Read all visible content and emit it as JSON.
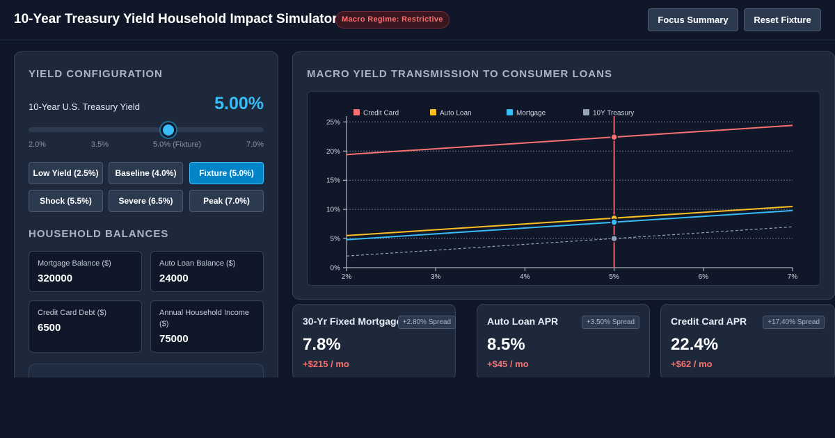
{
  "header": {
    "title": "10-Year Treasury Yield Household Impact Simulator",
    "regime_badge": "Macro Regime: Restrictive",
    "focus_button": "Focus Summary",
    "reset_button": "Reset Fixture"
  },
  "yield_config": {
    "section_title": "YIELD CONFIGURATION",
    "label": "10-Year U.S. Treasury Yield",
    "value_text": "5.00%",
    "slider": {
      "min": 2.0,
      "max": 7.0,
      "value": 5.0
    },
    "ticks": [
      "2.0%",
      "3.5%",
      "5.0% (Fixture)",
      "7.0%"
    ],
    "presets": [
      {
        "label": "Low Yield (2.5%)",
        "active": false
      },
      {
        "label": "Baseline (4.0%)",
        "active": false
      },
      {
        "label": "Fixture (5.0%)",
        "active": true
      },
      {
        "label": "Shock (5.5%)",
        "active": false
      },
      {
        "label": "Severe (6.5%)",
        "active": false
      },
      {
        "label": "Peak (7.0%)",
        "active": false
      }
    ]
  },
  "household": {
    "section_title": "HOUSEHOLD BALANCES",
    "fields": [
      {
        "label": "Mortgage Balance ($)",
        "value": "320000"
      },
      {
        "label": "Auto Loan Balance ($)",
        "value": "24000"
      },
      {
        "label": "Credit Card Debt ($)",
        "value": "6500"
      },
      {
        "label": "Annual Household Income ($)",
        "value": "75000"
      }
    ]
  },
  "chart_section": {
    "title": "MACRO YIELD TRANSMISSION TO CONSUMER LOANS"
  },
  "chart_data": {
    "type": "line",
    "x": [
      2,
      3,
      4,
      5,
      6,
      7
    ],
    "x_tick_labels": [
      "2%",
      "3%",
      "4%",
      "5%",
      "6%",
      "7%"
    ],
    "y_tick_labels": [
      "0%",
      "5%",
      "10%",
      "15%",
      "20%",
      "25%"
    ],
    "xlim": [
      2,
      7
    ],
    "ylim": [
      0,
      26
    ],
    "y_ticks": [
      0,
      5,
      10,
      15,
      20,
      25
    ],
    "grid": true,
    "legend_position": "top-left",
    "marker_x": 5,
    "series": [
      {
        "name": "Credit Card",
        "color": "#f87171",
        "dashed": false,
        "values": [
          19.4,
          20.4,
          21.4,
          22.4,
          23.4,
          24.4
        ]
      },
      {
        "name": "Auto Loan",
        "color": "#fbbf24",
        "dashed": false,
        "values": [
          5.5,
          6.5,
          7.5,
          8.5,
          9.5,
          10.5
        ]
      },
      {
        "name": "Mortgage",
        "color": "#38bdf8",
        "dashed": false,
        "values": [
          4.8,
          5.8,
          6.8,
          7.8,
          8.8,
          9.8
        ]
      },
      {
        "name": "10Y Treasury",
        "color": "#94a3b8",
        "dashed": true,
        "values": [
          2,
          3,
          4,
          5,
          6,
          7
        ]
      }
    ]
  },
  "cards": [
    {
      "title": "30-Yr Fixed Mortgage",
      "spread": "+2.80% Spread",
      "rate": "7.8%",
      "delta": "+$215 / mo"
    },
    {
      "title": "Auto Loan APR",
      "spread": "+3.50% Spread",
      "rate": "8.5%",
      "delta": "+$45 / mo"
    },
    {
      "title": "Credit Card APR",
      "spread": "+17.40% Spread",
      "rate": "22.4%",
      "delta": "+$62 / mo"
    }
  ]
}
